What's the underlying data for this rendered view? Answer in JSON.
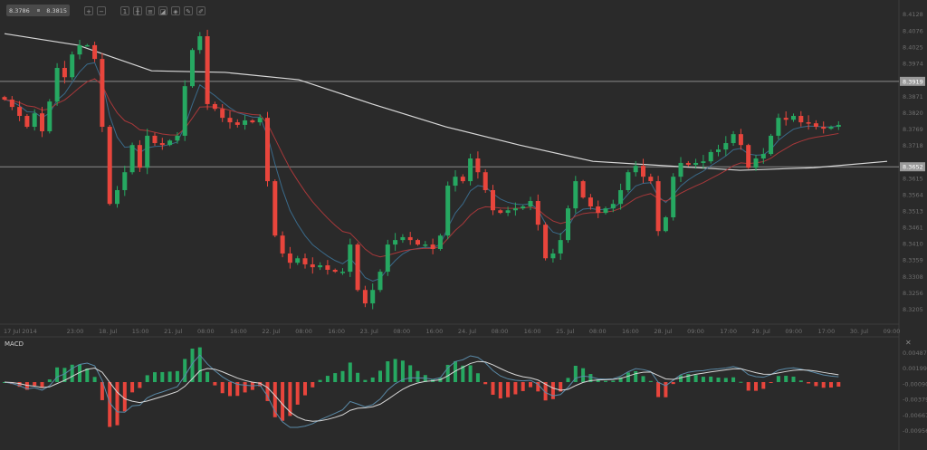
{
  "toolbar": {
    "bid": "8.3786",
    "ask": "8.3815",
    "buttons": [
      {
        "icon": "zoom-in-icon",
        "glyph": "+"
      },
      {
        "icon": "zoom-out-icon",
        "glyph": "−"
      },
      {
        "icon": "timeframe-icon",
        "glyph": "1"
      },
      {
        "icon": "candlestick-icon",
        "glyph": "╫"
      },
      {
        "icon": "indicators-icon",
        "glyph": "≡"
      },
      {
        "icon": "drawing-icon",
        "glyph": "◪"
      },
      {
        "icon": "layers-icon",
        "glyph": "◈"
      },
      {
        "icon": "edit-icon",
        "glyph": "✎"
      },
      {
        "icon": "pen-icon",
        "glyph": "✐"
      }
    ]
  },
  "colors": {
    "background": "#2a2a2a",
    "up": "#26a861",
    "down": "#e8453c",
    "ma_fast": "#3a6a8a",
    "ma_slow": "#a8383a",
    "ma_long": "#d8d8d8",
    "level": "#8a8a8a"
  },
  "chart_data": [
    {
      "type": "candlestick",
      "title": "",
      "y_ticks": [
        "8.4128",
        "8.4076",
        "8.4025",
        "8.3974",
        "8.3871",
        "8.3820",
        "8.3769",
        "8.3718",
        "8.3615",
        "8.3564",
        "8.3513",
        "8.3461",
        "8.3410",
        "8.3359",
        "8.3308",
        "8.3256",
        "8.3205"
      ],
      "ylim": [
        8.3185,
        8.415
      ],
      "x_ticks": [
        "17 Jul 2014",
        "23:00",
        "18. Jul",
        "15:00",
        "21. Jul",
        "08:00",
        "16:00",
        "22. Jul",
        "08:00",
        "16:00",
        "23. Jul",
        "08:00",
        "16:00",
        "24. Jul",
        "08:00",
        "16:00",
        "25. Jul",
        "08:00",
        "16:00",
        "28. Jul",
        "09:00",
        "17:00",
        "29. Jul",
        "09:00",
        "17:00",
        "30. Jul",
        "09:00"
      ],
      "horizontal_levels": [
        "8.3919",
        "8.3652"
      ],
      "closes": [
        8.3862,
        8.3839,
        8.3811,
        8.3777,
        8.3819,
        8.3763,
        8.3856,
        8.3961,
        8.3932,
        8.4003,
        8.4032,
        8.4032,
        8.3989,
        8.3777,
        8.3536,
        8.3579,
        8.3635,
        8.372,
        8.3649,
        8.3749,
        8.3726,
        8.372,
        8.3734,
        8.3749,
        8.3904,
        8.4017,
        8.406,
        8.3848,
        8.3833,
        8.3805,
        8.3791,
        8.3783,
        8.3797,
        8.3791,
        8.3805,
        8.3607,
        8.3437,
        8.3381,
        8.3352,
        8.3366,
        8.3347,
        8.3338,
        8.3344,
        8.333,
        8.3324,
        8.3324,
        8.3409,
        8.3267,
        8.3225,
        8.3267,
        8.3324,
        8.3409,
        8.3423,
        8.3432,
        8.3423,
        8.3409,
        8.3409,
        8.3395,
        8.3437,
        8.3593,
        8.3621,
        8.3607,
        8.3678,
        8.3635,
        8.3579,
        8.3516,
        8.3508,
        8.3516,
        8.3522,
        8.3528,
        8.3545,
        8.3471,
        8.3366,
        8.3381,
        8.3423,
        8.3522,
        8.3607,
        8.3556,
        8.3528,
        8.3508,
        8.3522,
        8.3536,
        8.3579,
        8.3635,
        8.3655,
        8.3621,
        8.3607,
        8.3451,
        8.3494,
        8.3621,
        8.3664,
        8.3658,
        8.3664,
        8.3669,
        8.3698,
        8.3706,
        8.3726,
        8.3754,
        8.372,
        8.3649,
        8.3678,
        8.3692,
        8.3749,
        8.3805,
        8.3799,
        8.3811,
        8.3791,
        8.3788,
        8.3777,
        8.3771,
        8.3777,
        8.3783
      ],
      "long_ma": [
        8.4068,
        8.4032,
        8.3952,
        8.3947,
        8.3924,
        8.3848,
        8.3777,
        8.372,
        8.3669,
        8.3655,
        8.3641,
        8.3649,
        8.3669
      ]
    },
    {
      "type": "bar",
      "title": "MACD",
      "y_ticks": [
        "0.00487",
        "0.00199",
        "-0.00090",
        "-0.00379",
        "-0.00667",
        "-0.00956"
      ]
    }
  ]
}
